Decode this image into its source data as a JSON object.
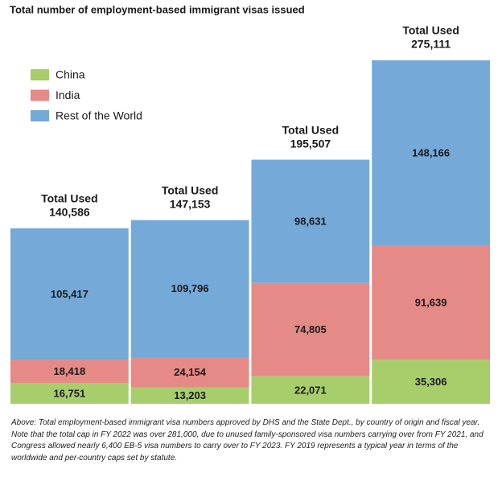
{
  "chart_data": {
    "type": "bar",
    "stacked": true,
    "title": "Total number of employment-based immigrant visas issued",
    "categories": [
      null,
      null,
      null,
      null
    ],
    "series": [
      {
        "name": "China",
        "color": "#a8cd6b",
        "values": [
          16751,
          13203,
          22071,
          35306
        ],
        "value_labels": [
          "16,751",
          "13,203",
          "22,071",
          "35,306"
        ]
      },
      {
        "name": "India",
        "color": "#e58a86",
        "values": [
          18418,
          24154,
          74805,
          91639
        ],
        "value_labels": [
          "18,418",
          "24,154",
          "74,805",
          "91,639"
        ]
      },
      {
        "name": "Rest of the World",
        "color": "#74a9d8",
        "values": [
          105417,
          109796,
          98631,
          148166
        ],
        "value_labels": [
          "105,417",
          "109,796",
          "98,631",
          "148,166"
        ]
      }
    ],
    "totals": {
      "label": "Total Used",
      "values": [
        140586,
        147153,
        195507,
        275111
      ],
      "value_labels": [
        "140,586",
        "147,153",
        "195,507",
        "275,111"
      ]
    },
    "legend": "upper left",
    "note": "Above: Total employment-based immigrant visa numbers approved by DHS and the State Dept., by country of origin and fiscal year. Note that the total cap in FY 2022 was over 281,000, due to unused family-sponsored visa numbers carrying over from FY 2021, and Congress allowed nearly 6,400 EB-5 visa numbers to carry over to FY 2023. FY 2019 represents a typical year in terms of the worldwide and per-country caps set by statute."
  }
}
